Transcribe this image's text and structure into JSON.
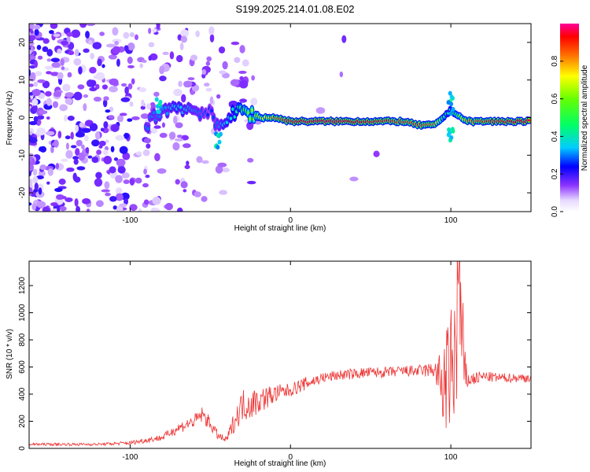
{
  "title": "S199.2025.214.01.08.E02",
  "chart_data": [
    {
      "type": "heatmap",
      "xlabel": "Height of straight line (km)",
      "ylabel": "Frequency (Hz)",
      "xlim": [
        -163,
        150
      ],
      "ylim": [
        -25,
        25
      ],
      "xticks": [
        -100,
        0,
        100
      ],
      "yticks": [
        -20,
        -10,
        0,
        10,
        20
      ],
      "colorbar": {
        "label": "Normalized spectral amplitude",
        "range": [
          0,
          1
        ],
        "ticks": [
          0.0,
          0.2,
          0.4,
          0.6,
          0.8
        ]
      },
      "ridge": {
        "x": [
          -90,
          -80,
          -70,
          -60,
          -50,
          -45,
          -40,
          -35,
          -30,
          -25,
          -20,
          -10,
          0,
          10,
          30,
          50,
          70,
          80,
          90,
          95,
          100,
          110,
          130,
          150
        ],
        "freq": [
          -2,
          2,
          3,
          2,
          1,
          -3,
          0,
          1,
          2,
          1,
          0,
          0,
          -1,
          -1,
          -1,
          -1,
          -1,
          -2,
          -2,
          0,
          2,
          -1,
          -1,
          -1
        ],
        "amplitude": [
          0.3,
          0.3,
          0.35,
          0.3,
          0.25,
          0.3,
          0.35,
          0.4,
          0.5,
          0.6,
          0.65,
          0.8,
          0.9,
          0.95,
          0.95,
          0.9,
          0.85,
          0.85,
          0.8,
          0.5,
          0.4,
          0.8,
          0.9,
          0.95
        ]
      }
    },
    {
      "type": "line",
      "xlabel": "Height of straight line (km)",
      "ylabel": "SNR (10 * v/v)",
      "xlim": [
        -163,
        150
      ],
      "ylim": [
        0,
        1380
      ],
      "xticks": [
        -100,
        0,
        100
      ],
      "yticks": [
        0,
        200,
        400,
        600,
        800,
        1000,
        1200
      ],
      "series": [
        {
          "color": "#ee3333",
          "x": [
            -163,
            -120,
            -100,
            -80,
            -70,
            -60,
            -55,
            -50,
            -45,
            -40,
            -35,
            -30,
            -25,
            -20,
            -10,
            0,
            10,
            20,
            30,
            40,
            50,
            60,
            70,
            80,
            90,
            95,
            100,
            103,
            105,
            108,
            110,
            120,
            130,
            140,
            150
          ],
          "y": [
            30,
            30,
            40,
            80,
            150,
            200,
            250,
            180,
            90,
            60,
            200,
            320,
            330,
            350,
            400,
            430,
            480,
            520,
            540,
            550,
            560,
            560,
            570,
            570,
            580,
            450,
            550,
            700,
            1300,
            550,
            500,
            530,
            520,
            520,
            520
          ],
          "jitter": [
            10,
            10,
            15,
            25,
            40,
            50,
            60,
            50,
            30,
            25,
            80,
            120,
            120,
            100,
            70,
            50,
            50,
            40,
            40,
            40,
            40,
            40,
            40,
            45,
            60,
            300,
            500,
            600,
            700,
            400,
            60,
            40,
            35,
            35,
            35
          ]
        }
      ]
    }
  ]
}
